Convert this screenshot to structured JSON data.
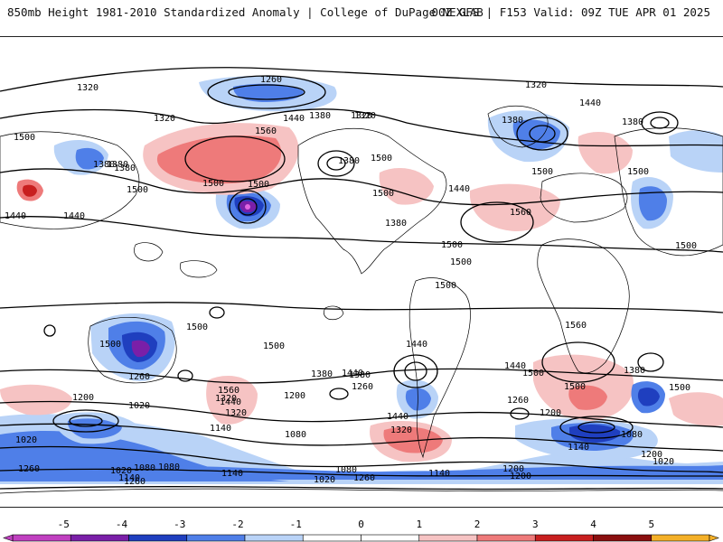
{
  "header": {
    "title": "850mb Height 1981-2010 Standardized Anomaly | College of DuPage NEXLAB",
    "run_info": "00Z GFS | F153 Valid: 09Z TUE APR 01 2025"
  },
  "colors": {
    "neg5": "#c040c0",
    "neg4": "#7a1fa8",
    "neg3": "#1f3fbf",
    "neg2": "#4f7fe8",
    "neg1": "#b9d3f7",
    "pos1": "#f6c3c3",
    "pos2": "#ee7a7a",
    "pos3": "#c81f1f",
    "pos4": "#8a0f0f",
    "pos5": "#f4b028",
    "contour": "#000000",
    "coast": "#000000"
  },
  "colorbar": {
    "ticks": [
      "-5",
      "-4",
      "-3",
      "-2",
      "-1",
      "0",
      "1",
      "2",
      "3",
      "4",
      "5"
    ],
    "bins": [
      "neg5",
      "neg4",
      "neg3",
      "neg2",
      "neg1",
      "zero",
      "pos1",
      "pos2",
      "pos3",
      "pos4",
      "pos5"
    ]
  },
  "contour_labels": [
    "1260",
    "1320",
    "1320",
    "1380",
    "1440",
    "1380",
    "1320",
    "1440",
    "1380",
    "1500",
    "1440",
    "1380",
    "1500",
    "1560",
    "1500",
    "1500",
    "1500",
    "1500",
    "1440",
    "1380",
    "1440",
    "1500",
    "1560",
    "1380",
    "1320",
    "1500",
    "1500",
    "1440",
    "1500",
    "1500",
    "1500",
    "1500",
    "1500",
    "1560",
    "1500",
    "1560",
    "1440",
    "1380",
    "1260",
    "1200",
    "1080",
    "1020",
    "1440",
    "1320",
    "1200",
    "1380",
    "1260",
    "1440",
    "1320",
    "1200",
    "1260",
    "1140",
    "1080",
    "1200",
    "1260",
    "1140",
    "1080",
    "1020",
    "1020",
    "1200",
    "1140",
    "1020",
    "1080",
    "1140",
    "1080",
    "1020",
    "1260",
    "1140",
    "1200",
    "1260",
    "1500",
    "1380",
    "1440",
    "1500",
    "1320",
    "1380",
    "1500",
    "1320",
    "1380"
  ]
}
